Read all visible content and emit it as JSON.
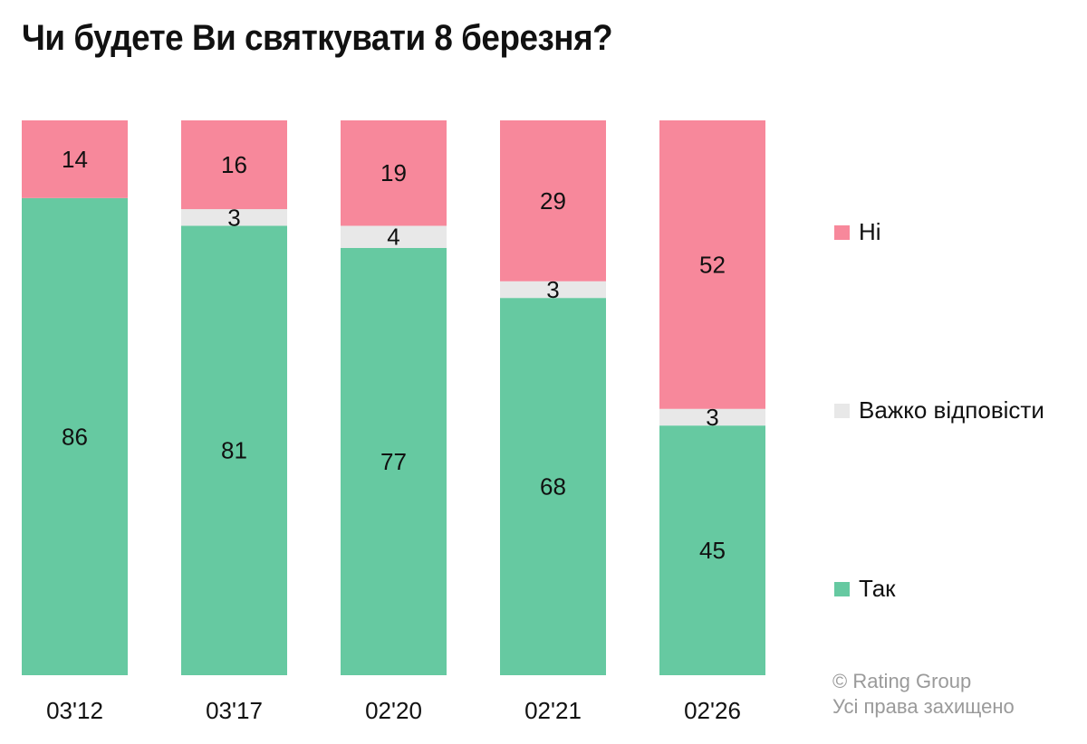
{
  "chart_data": {
    "type": "bar",
    "stacked": true,
    "title": "Чи будете Ви святкувати 8 березня?",
    "categories": [
      "03'12",
      "03'17",
      "02'20",
      "02'21",
      "02'26"
    ],
    "series": [
      {
        "name": "Так",
        "color": "#66c9a1",
        "values": [
          86,
          81,
          77,
          68,
          45
        ]
      },
      {
        "name": "Важко відповісти",
        "color": "#e8e8e8",
        "values": [
          0,
          3,
          4,
          3,
          3
        ]
      },
      {
        "name": "Ні",
        "color": "#f7889b",
        "values": [
          14,
          16,
          19,
          29,
          52
        ]
      }
    ],
    "ylim": [
      0,
      100
    ],
    "grid": false,
    "legend_placement": "right"
  },
  "legend": [
    {
      "label": "Ні",
      "color": "#f7889b"
    },
    {
      "label": "Важко відповісти",
      "color": "#e8e8e8"
    },
    {
      "label": "Так",
      "color": "#66c9a1"
    }
  ],
  "footer": {
    "copyright": "© Rating Group",
    "rights": "Усі права захищено"
  }
}
